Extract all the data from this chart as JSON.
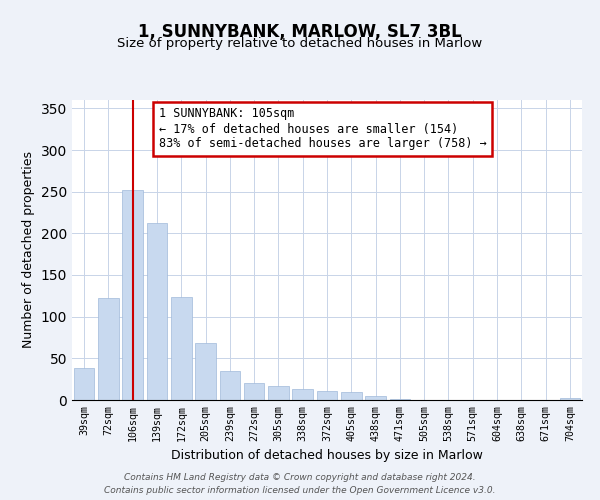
{
  "title": "1, SUNNYBANK, MARLOW, SL7 3BL",
  "subtitle": "Size of property relative to detached houses in Marlow",
  "xlabel": "Distribution of detached houses by size in Marlow",
  "ylabel": "Number of detached properties",
  "bar_labels": [
    "39sqm",
    "72sqm",
    "106sqm",
    "139sqm",
    "172sqm",
    "205sqm",
    "239sqm",
    "272sqm",
    "305sqm",
    "338sqm",
    "372sqm",
    "405sqm",
    "438sqm",
    "471sqm",
    "505sqm",
    "538sqm",
    "571sqm",
    "604sqm",
    "638sqm",
    "671sqm",
    "704sqm"
  ],
  "bar_values": [
    38,
    122,
    252,
    213,
    124,
    68,
    35,
    21,
    17,
    13,
    11,
    10,
    5,
    1,
    0,
    0,
    0,
    0,
    0,
    0,
    3
  ],
  "bar_color": "#c8d9ef",
  "bar_edge_color": "#a0bada",
  "vline_x": 2,
  "vline_color": "#cc0000",
  "ylim": [
    0,
    360
  ],
  "yticks": [
    0,
    50,
    100,
    150,
    200,
    250,
    300,
    350
  ],
  "annotation_line1": "1 SUNNYBANK: 105sqm",
  "annotation_line2": "← 17% of detached houses are smaller (154)",
  "annotation_line3": "83% of semi-detached houses are larger (758) →",
  "annotation_box_color": "#ffffff",
  "annotation_box_edge": "#cc0000",
  "footer_line1": "Contains HM Land Registry data © Crown copyright and database right 2024.",
  "footer_line2": "Contains public sector information licensed under the Open Government Licence v3.0.",
  "background_color": "#eef2f9",
  "plot_bg_color": "#ffffff",
  "grid_color": "#c8d4e8"
}
